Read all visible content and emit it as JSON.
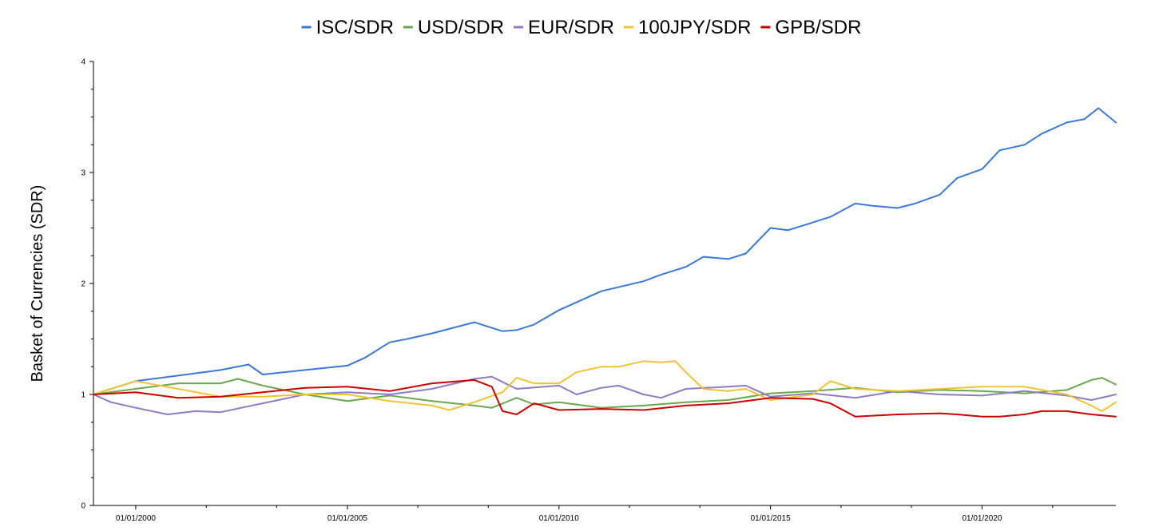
{
  "chart_data": {
    "type": "line",
    "title": "",
    "xlabel": "",
    "ylabel": "Basket of Currencies (SDR)",
    "legend_position": "top",
    "grid": false,
    "xlim": [
      "1999-01-01",
      "2023-03-01"
    ],
    "ylim": [
      0,
      4
    ],
    "x_ticks": [
      {
        "date": "2000-01-01",
        "label": "01/01/2000"
      },
      {
        "date": "2005-01-01",
        "label": "01/01/2005"
      },
      {
        "date": "2010-01-01",
        "label": "01/01/2010"
      },
      {
        "date": "2015-01-01",
        "label": "01/01/2015"
      },
      {
        "date": "2020-01-01",
        "label": "01/01/2020"
      }
    ],
    "x_minor_ticks": [
      "2001-09-01",
      "2003-05-01",
      "2006-09-01",
      "2008-05-01",
      "2011-09-01",
      "2013-05-01",
      "2016-09-01",
      "2018-05-01",
      "2021-09-01"
    ],
    "y_ticks": [
      0,
      1,
      2,
      3,
      4
    ],
    "y_minor_ticks": [
      0.25,
      0.5,
      0.75,
      1.25,
      1.5,
      1.75,
      2.25,
      2.5,
      2.75,
      3.25,
      3.5,
      3.75
    ],
    "series": [
      {
        "name": "ISC/SDR",
        "color": "#3b78d8",
        "points": [
          [
            "1999-01-01",
            1.0
          ],
          [
            "2000-01-01",
            1.12
          ],
          [
            "2001-01-01",
            1.17
          ],
          [
            "2002-01-01",
            1.22
          ],
          [
            "2002-09-01",
            1.27
          ],
          [
            "2003-01-01",
            1.18
          ],
          [
            "2004-01-01",
            1.22
          ],
          [
            "2005-01-01",
            1.26
          ],
          [
            "2005-06-01",
            1.33
          ],
          [
            "2006-01-01",
            1.47
          ],
          [
            "2006-06-01",
            1.5
          ],
          [
            "2007-01-01",
            1.55
          ],
          [
            "2008-01-01",
            1.65
          ],
          [
            "2008-09-01",
            1.57
          ],
          [
            "2009-01-01",
            1.58
          ],
          [
            "2009-06-01",
            1.63
          ],
          [
            "2010-01-01",
            1.76
          ],
          [
            "2011-01-01",
            1.93
          ],
          [
            "2012-01-01",
            2.02
          ],
          [
            "2012-06-01",
            2.08
          ],
          [
            "2013-01-01",
            2.15
          ],
          [
            "2013-06-01",
            2.24
          ],
          [
            "2014-01-01",
            2.22
          ],
          [
            "2014-06-01",
            2.27
          ],
          [
            "2015-01-01",
            2.5
          ],
          [
            "2015-06-01",
            2.48
          ],
          [
            "2016-01-01",
            2.55
          ],
          [
            "2016-06-01",
            2.6
          ],
          [
            "2017-01-01",
            2.72
          ],
          [
            "2017-06-01",
            2.7
          ],
          [
            "2018-01-01",
            2.68
          ],
          [
            "2018-06-01",
            2.72
          ],
          [
            "2019-01-01",
            2.8
          ],
          [
            "2019-06-01",
            2.95
          ],
          [
            "2020-01-01",
            3.03
          ],
          [
            "2020-06-01",
            3.2
          ],
          [
            "2021-01-01",
            3.25
          ],
          [
            "2021-06-01",
            3.35
          ],
          [
            "2022-01-01",
            3.45
          ],
          [
            "2022-06-01",
            3.48
          ],
          [
            "2022-10-01",
            3.58
          ],
          [
            "2023-03-01",
            3.45
          ]
        ]
      },
      {
        "name": "USD/SDR",
        "color": "#6aa84f",
        "points": [
          [
            "1999-01-01",
            1.0
          ],
          [
            "2000-01-01",
            1.05
          ],
          [
            "2001-01-01",
            1.1
          ],
          [
            "2002-01-01",
            1.1
          ],
          [
            "2002-06-01",
            1.14
          ],
          [
            "2003-01-01",
            1.08
          ],
          [
            "2004-01-01",
            1.0
          ],
          [
            "2005-01-01",
            0.94
          ],
          [
            "2006-01-01",
            0.99
          ],
          [
            "2007-01-01",
            0.94
          ],
          [
            "2008-01-01",
            0.9
          ],
          [
            "2008-06-01",
            0.88
          ],
          [
            "2009-01-01",
            0.97
          ],
          [
            "2009-06-01",
            0.91
          ],
          [
            "2010-01-01",
            0.93
          ],
          [
            "2011-01-01",
            0.88
          ],
          [
            "2012-01-01",
            0.9
          ],
          [
            "2013-01-01",
            0.93
          ],
          [
            "2014-01-01",
            0.95
          ],
          [
            "2015-01-01",
            1.01
          ],
          [
            "2016-01-01",
            1.03
          ],
          [
            "2017-01-01",
            1.06
          ],
          [
            "2018-01-01",
            1.02
          ],
          [
            "2019-01-01",
            1.04
          ],
          [
            "2020-01-01",
            1.03
          ],
          [
            "2021-01-01",
            1.01
          ],
          [
            "2022-01-01",
            1.04
          ],
          [
            "2022-08-01",
            1.13
          ],
          [
            "2022-11-01",
            1.15
          ],
          [
            "2023-03-01",
            1.09
          ]
        ]
      },
      {
        "name": "EUR/SDR",
        "color": "#8e7cc3",
        "points": [
          [
            "1999-01-01",
            1.0
          ],
          [
            "1999-06-01",
            0.93
          ],
          [
            "2000-01-01",
            0.88
          ],
          [
            "2000-10-01",
            0.82
          ],
          [
            "2001-06-01",
            0.85
          ],
          [
            "2002-01-01",
            0.84
          ],
          [
            "2003-01-01",
            0.92
          ],
          [
            "2004-01-01",
            1.0
          ],
          [
            "2005-01-01",
            1.02
          ],
          [
            "2006-01-01",
            1.0
          ],
          [
            "2007-01-01",
            1.05
          ],
          [
            "2008-01-01",
            1.14
          ],
          [
            "2008-06-01",
            1.16
          ],
          [
            "2009-01-01",
            1.05
          ],
          [
            "2010-01-01",
            1.08
          ],
          [
            "2010-06-01",
            1.0
          ],
          [
            "2011-01-01",
            1.06
          ],
          [
            "2011-06-01",
            1.08
          ],
          [
            "2012-01-01",
            1.0
          ],
          [
            "2012-06-01",
            0.97
          ],
          [
            "2013-01-01",
            1.05
          ],
          [
            "2014-01-01",
            1.07
          ],
          [
            "2014-06-01",
            1.08
          ],
          [
            "2015-01-01",
            0.98
          ],
          [
            "2016-01-01",
            1.01
          ],
          [
            "2017-01-01",
            0.97
          ],
          [
            "2018-01-01",
            1.03
          ],
          [
            "2019-01-01",
            1.0
          ],
          [
            "2020-01-01",
            0.99
          ],
          [
            "2021-01-01",
            1.03
          ],
          [
            "2022-01-01",
            0.99
          ],
          [
            "2022-08-01",
            0.95
          ],
          [
            "2023-03-01",
            1.0
          ]
        ]
      },
      {
        "name": "100JPY/SDR",
        "color": "#f1c232",
        "points": [
          [
            "1999-01-01",
            1.0
          ],
          [
            "1999-06-01",
            1.05
          ],
          [
            "2000-01-01",
            1.12
          ],
          [
            "2001-01-01",
            1.05
          ],
          [
            "2002-01-01",
            0.98
          ],
          [
            "2003-01-01",
            0.98
          ],
          [
            "2004-01-01",
            1.0
          ],
          [
            "2005-01-01",
            1.0
          ],
          [
            "2006-01-01",
            0.94
          ],
          [
            "2007-01-01",
            0.9
          ],
          [
            "2007-06-01",
            0.86
          ],
          [
            "2008-01-01",
            0.93
          ],
          [
            "2008-09-01",
            1.02
          ],
          [
            "2009-01-01",
            1.15
          ],
          [
            "2009-06-01",
            1.1
          ],
          [
            "2010-01-01",
            1.1
          ],
          [
            "2010-06-01",
            1.2
          ],
          [
            "2011-01-01",
            1.25
          ],
          [
            "2011-06-01",
            1.25
          ],
          [
            "2012-01-01",
            1.3
          ],
          [
            "2012-06-01",
            1.29
          ],
          [
            "2012-10-01",
            1.3
          ],
          [
            "2013-01-01",
            1.2
          ],
          [
            "2013-06-01",
            1.05
          ],
          [
            "2014-01-01",
            1.03
          ],
          [
            "2014-06-01",
            1.05
          ],
          [
            "2015-01-01",
            0.95
          ],
          [
            "2016-01-01",
            1.0
          ],
          [
            "2016-06-01",
            1.12
          ],
          [
            "2017-01-01",
            1.05
          ],
          [
            "2018-01-01",
            1.03
          ],
          [
            "2019-01-01",
            1.05
          ],
          [
            "2020-01-01",
            1.07
          ],
          [
            "2021-01-01",
            1.07
          ],
          [
            "2022-01-01",
            1.0
          ],
          [
            "2022-08-01",
            0.9
          ],
          [
            "2022-11-01",
            0.85
          ],
          [
            "2023-03-01",
            0.93
          ]
        ]
      },
      {
        "name": "GPB/SDR",
        "color": "#cc0000",
        "points": [
          [
            "1999-01-01",
            1.0
          ],
          [
            "2000-01-01",
            1.02
          ],
          [
            "2001-01-01",
            0.97
          ],
          [
            "2002-01-01",
            0.98
          ],
          [
            "2003-01-01",
            1.02
          ],
          [
            "2004-01-01",
            1.06
          ],
          [
            "2005-01-01",
            1.07
          ],
          [
            "2006-01-01",
            1.03
          ],
          [
            "2007-01-01",
            1.1
          ],
          [
            "2008-01-01",
            1.13
          ],
          [
            "2008-06-01",
            1.07
          ],
          [
            "2008-09-01",
            0.85
          ],
          [
            "2009-01-01",
            0.82
          ],
          [
            "2009-06-01",
            0.92
          ],
          [
            "2010-01-01",
            0.86
          ],
          [
            "2011-01-01",
            0.87
          ],
          [
            "2012-01-01",
            0.86
          ],
          [
            "2013-01-01",
            0.9
          ],
          [
            "2014-01-01",
            0.92
          ],
          [
            "2015-01-01",
            0.97
          ],
          [
            "2016-01-01",
            0.96
          ],
          [
            "2016-06-01",
            0.92
          ],
          [
            "2017-01-01",
            0.8
          ],
          [
            "2018-01-01",
            0.82
          ],
          [
            "2019-01-01",
            0.83
          ],
          [
            "2019-06-01",
            0.82
          ],
          [
            "2020-01-01",
            0.8
          ],
          [
            "2020-06-01",
            0.8
          ],
          [
            "2021-01-01",
            0.82
          ],
          [
            "2021-06-01",
            0.85
          ],
          [
            "2022-01-01",
            0.85
          ],
          [
            "2022-08-01",
            0.82
          ],
          [
            "2023-03-01",
            0.8
          ]
        ]
      }
    ]
  }
}
